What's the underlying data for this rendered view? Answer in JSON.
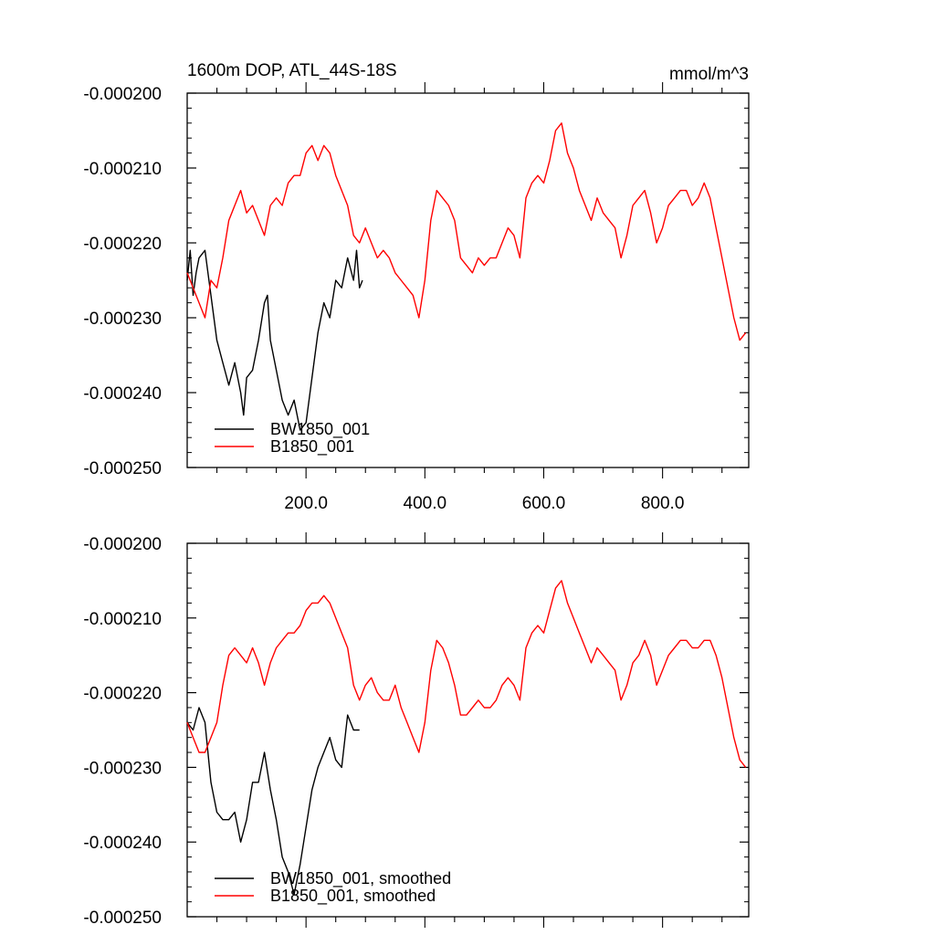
{
  "chart_data": [
    {
      "type": "line",
      "title": "1600m DOP, ATL_44S-18S",
      "units": "mmol/m^3",
      "xlim": [
        0,
        945
      ],
      "ylim": [
        -0.00025,
        -0.0002
      ],
      "x_tick_labels": [
        "200.0",
        "400.0",
        "600.0",
        "800.0"
      ],
      "y_tick_labels": [
        "-0.000200",
        "-0.000210",
        "-0.000220",
        "-0.000230",
        "-0.000240",
        "-0.000250"
      ],
      "legend_position": "bottom-left",
      "series": [
        {
          "name": "BW1850_001",
          "color": "#000000",
          "x": [
            0,
            5,
            10,
            15,
            20,
            30,
            40,
            50,
            60,
            70,
            80,
            90,
            95,
            100,
            110,
            120,
            130,
            135,
            140,
            150,
            160,
            170,
            180,
            190,
            200,
            210,
            220,
            230,
            240,
            250,
            260,
            270,
            280,
            285,
            290,
            295
          ],
          "y": [
            -0.000225,
            -0.000221,
            -0.000227,
            -0.000224,
            -0.000222,
            -0.000221,
            -0.000227,
            -0.000233,
            -0.000236,
            -0.000239,
            -0.000236,
            -0.00024,
            -0.000243,
            -0.000238,
            -0.000237,
            -0.000233,
            -0.000228,
            -0.000227,
            -0.000233,
            -0.000237,
            -0.000241,
            -0.000243,
            -0.000241,
            -0.000245,
            -0.000244,
            -0.000238,
            -0.000232,
            -0.000228,
            -0.00023,
            -0.000225,
            -0.000226,
            -0.000222,
            -0.000225,
            -0.000221,
            -0.000226,
            -0.000225
          ]
        },
        {
          "name": "B1850_001",
          "color": "#ff0000",
          "x": [
            0,
            10,
            20,
            30,
            40,
            50,
            60,
            70,
            80,
            90,
            100,
            110,
            120,
            130,
            140,
            150,
            160,
            170,
            180,
            190,
            200,
            210,
            220,
            230,
            240,
            250,
            260,
            270,
            280,
            290,
            300,
            310,
            320,
            330,
            340,
            350,
            360,
            370,
            380,
            390,
            400,
            410,
            420,
            430,
            440,
            450,
            460,
            470,
            480,
            490,
            500,
            510,
            520,
            530,
            540,
            550,
            560,
            570,
            580,
            590,
            600,
            610,
            620,
            630,
            640,
            650,
            660,
            670,
            680,
            690,
            700,
            710,
            720,
            730,
            740,
            750,
            760,
            770,
            780,
            790,
            800,
            810,
            820,
            830,
            840,
            850,
            860,
            870,
            880,
            890,
            900,
            910,
            920,
            930,
            940
          ],
          "y": [
            -0.000224,
            -0.000226,
            -0.000228,
            -0.00023,
            -0.000225,
            -0.000226,
            -0.000222,
            -0.000217,
            -0.000215,
            -0.000213,
            -0.000216,
            -0.000215,
            -0.000217,
            -0.000219,
            -0.000215,
            -0.000214,
            -0.000215,
            -0.000212,
            -0.000211,
            -0.000211,
            -0.000208,
            -0.000207,
            -0.000209,
            -0.000207,
            -0.000208,
            -0.000211,
            -0.000213,
            -0.000215,
            -0.000219,
            -0.00022,
            -0.000218,
            -0.00022,
            -0.000222,
            -0.000221,
            -0.000222,
            -0.000224,
            -0.000225,
            -0.000226,
            -0.000227,
            -0.00023,
            -0.000225,
            -0.000217,
            -0.000213,
            -0.000214,
            -0.000215,
            -0.000217,
            -0.000222,
            -0.000223,
            -0.000224,
            -0.000222,
            -0.000223,
            -0.000222,
            -0.000222,
            -0.00022,
            -0.000218,
            -0.000219,
            -0.000222,
            -0.000214,
            -0.000212,
            -0.000211,
            -0.000212,
            -0.000209,
            -0.000205,
            -0.000204,
            -0.000208,
            -0.00021,
            -0.000213,
            -0.000215,
            -0.000217,
            -0.000214,
            -0.000216,
            -0.000217,
            -0.000218,
            -0.000222,
            -0.000219,
            -0.000215,
            -0.000214,
            -0.000213,
            -0.000216,
            -0.00022,
            -0.000218,
            -0.000215,
            -0.000214,
            -0.000213,
            -0.000213,
            -0.000215,
            -0.000214,
            -0.000212,
            -0.000214,
            -0.000218,
            -0.000222,
            -0.000226,
            -0.00023,
            -0.000233,
            -0.000232
          ]
        }
      ]
    },
    {
      "type": "line",
      "xlim": [
        0,
        945
      ],
      "ylim": [
        -0.00025,
        -0.0002
      ],
      "y_tick_labels": [
        "-0.000200",
        "-0.000210",
        "-0.000220",
        "-0.000230",
        "-0.000240",
        "-0.000250"
      ],
      "legend_position": "bottom-left",
      "series": [
        {
          "name": "BW1850_001, smoothed",
          "color": "#000000",
          "x": [
            0,
            10,
            20,
            30,
            40,
            50,
            60,
            70,
            80,
            90,
            100,
            110,
            120,
            130,
            140,
            150,
            160,
            170,
            180,
            190,
            200,
            210,
            220,
            230,
            240,
            250,
            260,
            270,
            280,
            290
          ],
          "y": [
            -0.000224,
            -0.000225,
            -0.000222,
            -0.000224,
            -0.000232,
            -0.000236,
            -0.000237,
            -0.000237,
            -0.000236,
            -0.00024,
            -0.000237,
            -0.000232,
            -0.000232,
            -0.000228,
            -0.000233,
            -0.000237,
            -0.000242,
            -0.000244,
            -0.000247,
            -0.000243,
            -0.000238,
            -0.000233,
            -0.00023,
            -0.000228,
            -0.000226,
            -0.000229,
            -0.00023,
            -0.000223,
            -0.000225,
            -0.000225
          ]
        },
        {
          "name": "B1850_001, smoothed",
          "color": "#ff0000",
          "x": [
            0,
            10,
            20,
            30,
            40,
            50,
            60,
            70,
            80,
            90,
            100,
            110,
            120,
            130,
            140,
            150,
            160,
            170,
            180,
            190,
            200,
            210,
            220,
            230,
            240,
            250,
            260,
            270,
            280,
            290,
            300,
            310,
            320,
            330,
            340,
            350,
            360,
            370,
            380,
            390,
            400,
            410,
            420,
            430,
            440,
            450,
            460,
            470,
            480,
            490,
            500,
            510,
            520,
            530,
            540,
            550,
            560,
            570,
            580,
            590,
            600,
            610,
            620,
            630,
            640,
            650,
            660,
            670,
            680,
            690,
            700,
            710,
            720,
            730,
            740,
            750,
            760,
            770,
            780,
            790,
            800,
            810,
            820,
            830,
            840,
            850,
            860,
            870,
            880,
            890,
            900,
            910,
            920,
            930,
            940
          ],
          "y": [
            -0.000224,
            -0.000226,
            -0.000228,
            -0.000228,
            -0.000226,
            -0.000224,
            -0.000219,
            -0.000215,
            -0.000214,
            -0.000215,
            -0.000216,
            -0.000214,
            -0.000216,
            -0.000219,
            -0.000216,
            -0.000214,
            -0.000213,
            -0.000212,
            -0.000212,
            -0.000211,
            -0.000209,
            -0.000208,
            -0.000208,
            -0.000207,
            -0.000208,
            -0.00021,
            -0.000212,
            -0.000214,
            -0.000219,
            -0.000221,
            -0.000219,
            -0.000218,
            -0.00022,
            -0.000221,
            -0.000221,
            -0.000219,
            -0.000222,
            -0.000224,
            -0.000226,
            -0.000228,
            -0.000224,
            -0.000217,
            -0.000213,
            -0.000214,
            -0.000216,
            -0.000219,
            -0.000223,
            -0.000223,
            -0.000222,
            -0.000221,
            -0.000222,
            -0.000222,
            -0.000221,
            -0.000219,
            -0.000218,
            -0.000219,
            -0.000221,
            -0.000214,
            -0.000212,
            -0.000211,
            -0.000212,
            -0.000209,
            -0.000206,
            -0.000205,
            -0.000208,
            -0.00021,
            -0.000212,
            -0.000214,
            -0.000216,
            -0.000214,
            -0.000215,
            -0.000216,
            -0.000217,
            -0.000221,
            -0.000219,
            -0.000216,
            -0.000215,
            -0.000213,
            -0.000215,
            -0.000219,
            -0.000217,
            -0.000215,
            -0.000214,
            -0.000213,
            -0.000213,
            -0.000214,
            -0.000214,
            -0.000213,
            -0.000213,
            -0.000215,
            -0.000218,
            -0.000222,
            -0.000226,
            -0.000229,
            -0.00023
          ]
        }
      ]
    }
  ]
}
